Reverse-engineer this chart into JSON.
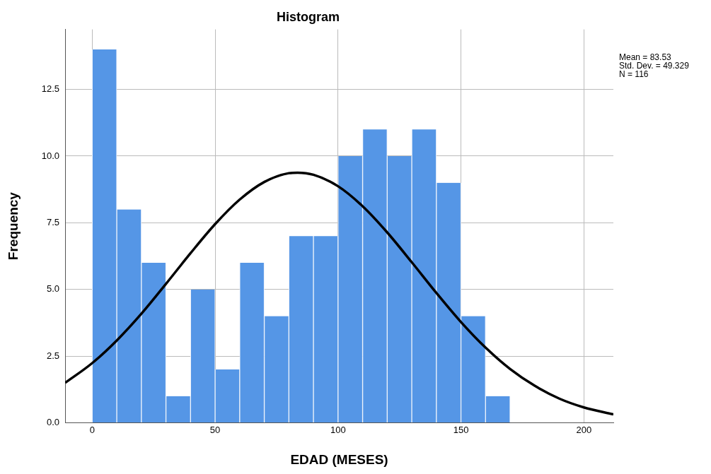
{
  "chart_data": {
    "type": "histogram",
    "title": "Histogram",
    "xlabel": "EDAD (MESES)",
    "ylabel": "Frequency",
    "bins": [
      0,
      10,
      20,
      30,
      40,
      50,
      60,
      70,
      80,
      90,
      100,
      110,
      120,
      130,
      140,
      150,
      160,
      170
    ],
    "series": [
      {
        "type": "histogram",
        "color": "#5596e6",
        "values": [
          14,
          8,
          6,
          1,
          5,
          2,
          6,
          4,
          7,
          7,
          10,
          11,
          10,
          11,
          9,
          4,
          1
        ]
      },
      {
        "type": "line",
        "color": "#000000",
        "x": [
          -11,
          0,
          10,
          20,
          30,
          40,
          50,
          60,
          70,
          80,
          83.53,
          90,
          100,
          110,
          120,
          130,
          140,
          150,
          160,
          170,
          180,
          190,
          200,
          212
        ],
        "values": [
          1.5,
          2.24,
          3.09,
          4.09,
          5.21,
          6.36,
          7.45,
          8.37,
          9.03,
          9.36,
          9.38,
          9.3,
          8.87,
          8.12,
          7.14,
          6.02,
          4.87,
          3.78,
          2.82,
          2.02,
          1.39,
          0.91,
          0.58,
          0.32
        ]
      }
    ],
    "xlim": [
      -11,
      212
    ],
    "xticks": [
      0,
      50,
      100,
      150,
      200
    ],
    "ylim": [
      0,
      14.75
    ],
    "yticks": [
      {
        "value": 0,
        "label": "0.0"
      },
      2.5,
      {
        "value": 5,
        "label": "5.0"
      },
      7.5,
      {
        "value": 10,
        "label": "10.0"
      },
      12.5
    ],
    "grid": true,
    "legend": false,
    "marker": "none",
    "line_style": "solid",
    "annotations": [
      "Mean = 83.53",
      "Std. Dev. = 49.329",
      "N = 116"
    ]
  }
}
